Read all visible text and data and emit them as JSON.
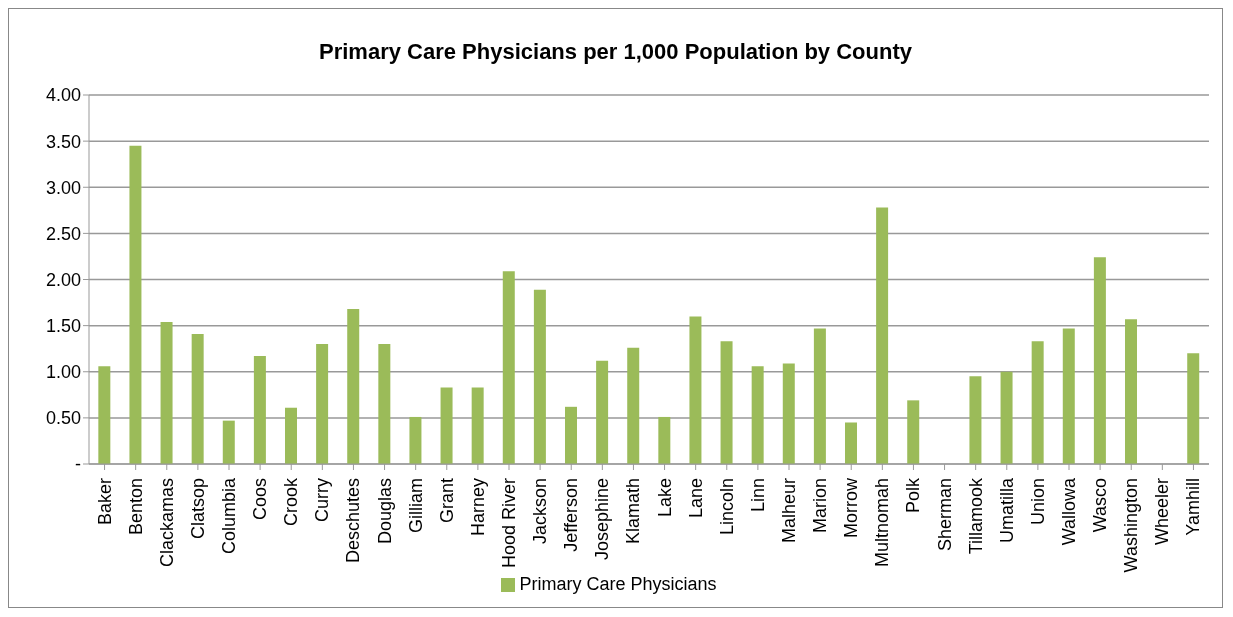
{
  "chart_data": {
    "type": "bar",
    "title": "Primary Care Physicians per 1,000 Population by County",
    "categories": [
      "Baker",
      "Benton",
      "Clackamas",
      "Clatsop",
      "Columbia",
      "Coos",
      "Crook",
      "Curry",
      "Deschutes",
      "Douglas",
      "Gilliam",
      "Grant",
      "Harney",
      "Hood River",
      "Jackson",
      "Jefferson",
      "Josephine",
      "Klamath",
      "Lake",
      "Lane",
      "Lincoln",
      "Linn",
      "Malheur",
      "Marion",
      "Morrow",
      "Multnomah",
      "Polk",
      "Sherman",
      "Tillamook",
      "Umatilla",
      "Union",
      "Wallowa",
      "Wasco",
      "Washington",
      "Wheeler",
      "Yamhill"
    ],
    "series": [
      {
        "name": "Primary Care Physicians",
        "color": "#9bbb59",
        "values": [
          1.06,
          3.45,
          1.54,
          1.41,
          0.47,
          1.17,
          0.61,
          1.3,
          1.68,
          1.3,
          0.51,
          0.83,
          0.83,
          2.09,
          1.89,
          0.62,
          1.12,
          1.26,
          0.51,
          1.6,
          1.33,
          1.06,
          1.09,
          1.47,
          0.45,
          2.78,
          0.69,
          0,
          0.95,
          1.0,
          1.33,
          1.47,
          2.24,
          1.57,
          0,
          1.2
        ]
      }
    ],
    "ylim": [
      0,
      4
    ],
    "yticks": [
      {
        "value": 0,
        "label": "-"
      },
      {
        "value": 0.5,
        "label": "0.50"
      },
      {
        "value": 1,
        "label": "1.00"
      },
      {
        "value": 1.5,
        "label": "1.50"
      },
      {
        "value": 2,
        "label": "2.00"
      },
      {
        "value": 2.5,
        "label": "2.50"
      },
      {
        "value": 3,
        "label": "3.00"
      },
      {
        "value": 3.5,
        "label": "3.50"
      },
      {
        "value": 4,
        "label": "4.00"
      }
    ],
    "grid": "y",
    "legend": "bottom"
  }
}
